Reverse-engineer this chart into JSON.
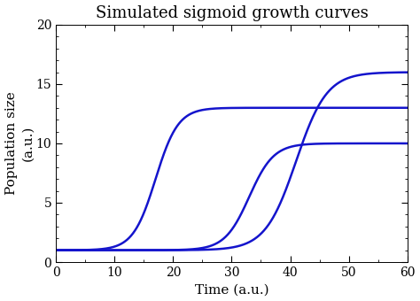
{
  "title": "Simulated sigmoid growth curves",
  "xlabel": "Time (a.u.)",
  "ylabel": "Population size\n(a.u.)",
  "xlim": [
    0,
    60
  ],
  "ylim": [
    0,
    20
  ],
  "xticks": [
    0,
    10,
    20,
    30,
    40,
    50,
    60
  ],
  "yticks": [
    0,
    5,
    10,
    15,
    20
  ],
  "line_color": "#1414cc",
  "line_width": 1.8,
  "curves": [
    {
      "L": 12.0,
      "k": 0.52,
      "x0": 17.0,
      "y0": 1.0
    },
    {
      "L": 9.0,
      "k": 0.48,
      "x0": 33.0,
      "y0": 1.0
    },
    {
      "L": 15.0,
      "k": 0.38,
      "x0": 41.0,
      "y0": 1.0
    }
  ],
  "background_color": "#ffffff",
  "title_fontsize": 13,
  "label_fontsize": 11,
  "tick_fontsize": 10
}
